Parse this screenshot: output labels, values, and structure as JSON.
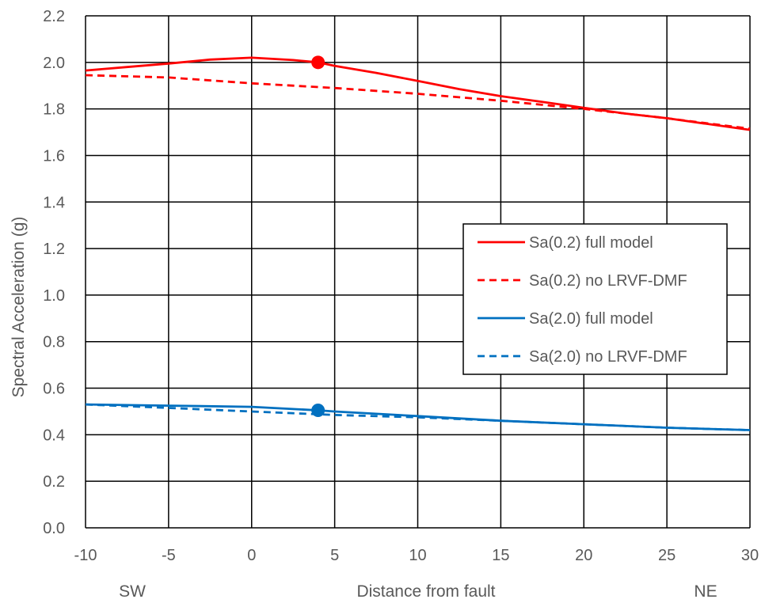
{
  "chart_data": {
    "type": "line",
    "title": "",
    "xlabel": "Distance from fault",
    "ylabel": "Spectral Acceleration (g)",
    "x_side_labels": {
      "left": "SW",
      "right": "NE"
    },
    "xlim": [
      -10,
      30
    ],
    "ylim": [
      0.0,
      2.2
    ],
    "xticks": [
      -10,
      -5,
      0,
      5,
      10,
      15,
      20,
      25,
      30
    ],
    "xtick_labels": [
      "-10",
      "-5",
      "0",
      "5",
      "10",
      "15",
      "20",
      "25",
      "30"
    ],
    "yticks": [
      0.0,
      0.2,
      0.4,
      0.6,
      0.8,
      1.0,
      1.2,
      1.4,
      1.6,
      1.8,
      2.0,
      2.2
    ],
    "ytick_labels": [
      "0.0",
      "0.2",
      "0.4",
      "0.6",
      "0.8",
      "1.0",
      "1.2",
      "1.4",
      "1.6",
      "1.8",
      "2.0",
      "2.2"
    ],
    "grid": true,
    "legend_position": "right-middle",
    "series": [
      {
        "name": "Sa(0.2) full model",
        "color": "#ff0000",
        "dash": "solid",
        "x": [
          -10,
          -7.5,
          -5,
          -2.5,
          0,
          2.5,
          4,
          5,
          7.5,
          10,
          12.5,
          15,
          17.5,
          20,
          22.5,
          25,
          27.5,
          30
        ],
        "y": [
          1.965,
          1.98,
          1.995,
          2.012,
          2.02,
          2.01,
          2.0,
          1.985,
          1.955,
          1.92,
          1.885,
          1.855,
          1.83,
          1.805,
          1.78,
          1.76,
          1.735,
          1.71
        ]
      },
      {
        "name": "Sa(0.2) no LRVF-DMF",
        "color": "#ff0000",
        "dash": "dashed",
        "x": [
          -10,
          -5,
          0,
          5,
          10,
          15,
          20,
          25,
          30
        ],
        "y": [
          1.945,
          1.935,
          1.91,
          1.89,
          1.865,
          1.835,
          1.8,
          1.76,
          1.715
        ]
      },
      {
        "name": "Sa(2.0) full model",
        "color": "#0070c0",
        "dash": "solid",
        "x": [
          -10,
          -5,
          0,
          4,
          5,
          10,
          15,
          20,
          25,
          30
        ],
        "y": [
          0.53,
          0.525,
          0.52,
          0.505,
          0.5,
          0.48,
          0.46,
          0.445,
          0.43,
          0.42
        ]
      },
      {
        "name": "Sa(2.0) no LRVF-DMF",
        "color": "#0070c0",
        "dash": "dashed",
        "x": [
          -10,
          -5,
          0,
          5,
          10,
          15,
          20,
          25,
          30
        ],
        "y": [
          0.53,
          0.515,
          0.5,
          0.485,
          0.475,
          0.46,
          0.445,
          0.43,
          0.42
        ]
      }
    ],
    "markers": [
      {
        "x": 4,
        "y": 2.0,
        "color": "#ff0000"
      },
      {
        "x": 4,
        "y": 0.505,
        "color": "#0070c0"
      }
    ]
  }
}
